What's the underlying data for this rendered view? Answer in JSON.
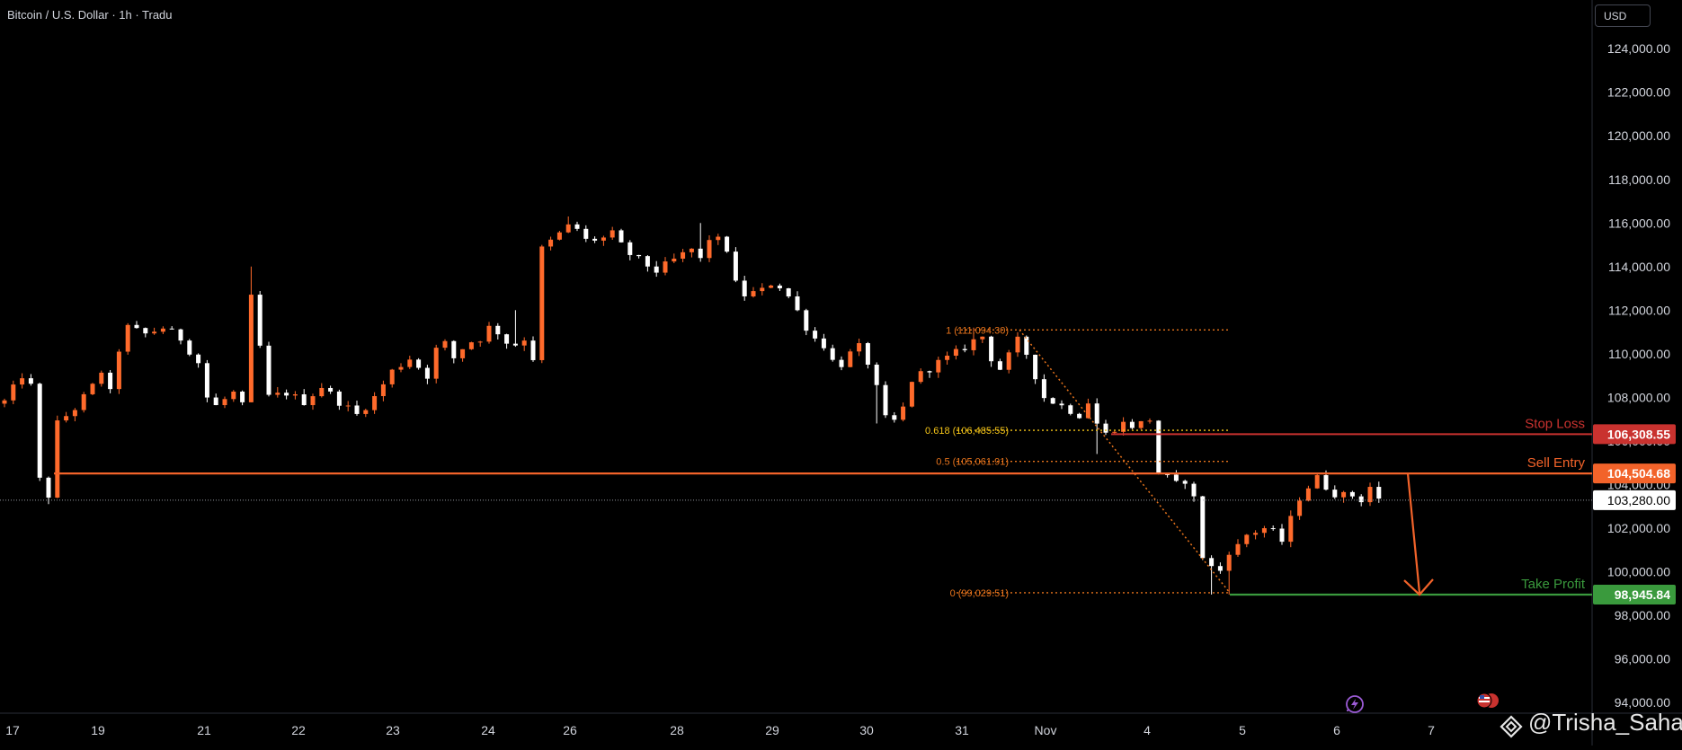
{
  "header": {
    "symbol_title": "Bitcoin / U.S. Dollar · 1h · Tradu",
    "currency_button": "USD"
  },
  "watermark": "@Trisha_Saha",
  "icons": {
    "watermark": "watermark-logo-icon",
    "lightning": "lightning-icon",
    "flag": "us-flag-icon"
  },
  "colors": {
    "up": "#ff6a2b",
    "down": "#ffffff",
    "entry": "#f2632a",
    "stop": "#c9322f",
    "target": "#3a9a3d",
    "fib": "#e8741c",
    "fib_618": "#f5c518"
  },
  "chart_data": {
    "type": "candlestick",
    "title": "Bitcoin / U.S. Dollar · 1h · Tradu",
    "ylim": [
      94000,
      125200
    ],
    "y_ticks": [
      94000,
      96000,
      98000,
      100000,
      102000,
      104000,
      106000,
      108000,
      110000,
      112000,
      114000,
      116000,
      118000,
      120000,
      122000,
      124000
    ],
    "y_tick_labels": [
      "94,000.00",
      "96,000.00",
      "98,000.00",
      "100,000.00",
      "102,000.00",
      "104,000.00",
      "106,000.00",
      "108,000.00",
      "110,000.00",
      "112,000.00",
      "114,000.00",
      "116,000.00",
      "118,000.00",
      "120,000.00",
      "122,000.00",
      "124,000.00"
    ],
    "x_tick_labels": [
      "17",
      "19",
      "21",
      "22",
      "23",
      "24",
      "26",
      "28",
      "29",
      "30",
      "31",
      "Nov",
      "4",
      "5",
      "6",
      "7"
    ],
    "price_path": [
      [
        0,
        107800
      ],
      [
        2,
        109000
      ],
      [
        3,
        108500
      ],
      [
        4,
        104200
      ],
      [
        5,
        103500
      ],
      [
        6,
        106800
      ],
      [
        8,
        107500
      ],
      [
        10,
        108500
      ],
      [
        11,
        109200
      ],
      [
        12,
        108200
      ],
      [
        13,
        110200
      ],
      [
        14,
        111200
      ],
      [
        16,
        110900
      ],
      [
        18,
        111200
      ],
      [
        20,
        110700
      ],
      [
        22,
        109600
      ],
      [
        23,
        108000
      ],
      [
        24,
        107600
      ],
      [
        26,
        108200
      ],
      [
        27,
        107600
      ],
      [
        27.7,
        113500
      ],
      [
        28.4,
        111300
      ],
      [
        29.5,
        109500
      ],
      [
        30,
        108000
      ],
      [
        32,
        108200
      ],
      [
        34,
        107800
      ],
      [
        36,
        108500
      ],
      [
        38,
        107800
      ],
      [
        40,
        107200
      ],
      [
        42,
        108000
      ],
      [
        44,
        109200
      ],
      [
        46,
        109800
      ],
      [
        48,
        109000
      ],
      [
        49.5,
        110800
      ],
      [
        51,
        109800
      ],
      [
        52.5,
        110500
      ],
      [
        54,
        110700
      ],
      [
        55,
        111200
      ],
      [
        56,
        111000
      ],
      [
        57.5,
        110300
      ],
      [
        59,
        110700
      ],
      [
        60,
        109800
      ],
      [
        60.5,
        113500
      ],
      [
        61,
        114800
      ],
      [
        63,
        115500
      ],
      [
        64.5,
        116000
      ],
      [
        66,
        115200
      ],
      [
        68,
        115300
      ],
      [
        69,
        115500
      ],
      [
        70.5,
        114700
      ],
      [
        72,
        114300
      ],
      [
        74,
        113800
      ],
      [
        76,
        114300
      ],
      [
        78,
        114800
      ],
      [
        79,
        114300
      ],
      [
        80,
        115300
      ],
      [
        81,
        115200
      ],
      [
        82,
        114800
      ],
      [
        83,
        113200
      ],
      [
        84,
        112700
      ],
      [
        86,
        112900
      ],
      [
        87.5,
        113400
      ],
      [
        88,
        113100
      ],
      [
        89.5,
        112400
      ],
      [
        90.5,
        111500
      ],
      [
        92,
        110700
      ],
      [
        93,
        110400
      ],
      [
        94.5,
        109300
      ],
      [
        96,
        110000
      ],
      [
        97,
        110300
      ],
      [
        98,
        109600
      ],
      [
        99.5,
        107800
      ],
      [
        100,
        107000
      ],
      [
        101,
        106900
      ],
      [
        102,
        107500
      ],
      [
        103,
        108800
      ],
      [
        104.5,
        109200
      ],
      [
        106,
        109600
      ],
      [
        107.5,
        109900
      ],
      [
        109,
        110300
      ],
      [
        110,
        110600
      ],
      [
        111,
        110800
      ],
      [
        112,
        109800
      ],
      [
        113,
        109300
      ],
      [
        114,
        109900
      ],
      [
        115,
        110600
      ],
      [
        116,
        110000
      ],
      [
        117,
        109000
      ],
      [
        118,
        108000
      ],
      [
        120,
        107600
      ],
      [
        122,
        107200
      ],
      [
        123,
        107800
      ],
      [
        124,
        106800
      ],
      [
        125,
        106300
      ],
      [
        126,
        106600
      ],
      [
        127,
        106800
      ],
      [
        128,
        106700
      ],
      [
        129,
        106800
      ],
      [
        130,
        107000
      ],
      [
        130.5,
        104600
      ],
      [
        132,
        104300
      ],
      [
        133,
        104000
      ],
      [
        134,
        104200
      ],
      [
        134.5,
        104500
      ],
      [
        135.5,
        102200
      ],
      [
        136,
        100700
      ],
      [
        137,
        100200
      ],
      [
        137.5,
        99100
      ],
      [
        138.5,
        101000
      ],
      [
        139.5,
        100900
      ],
      [
        141,
        101700
      ],
      [
        143,
        102000
      ],
      [
        144,
        101800
      ],
      [
        145,
        101400
      ],
      [
        146,
        102400
      ],
      [
        147,
        103400
      ],
      [
        148,
        103900
      ],
      [
        149,
        104300
      ],
      [
        150,
        103900
      ],
      [
        151,
        103600
      ],
      [
        152,
        103500
      ],
      [
        153,
        103500
      ],
      [
        154,
        103300
      ],
      [
        155,
        103900
      ],
      [
        156,
        103280
      ]
    ],
    "levels": [
      {
        "name": "Stop Loss",
        "value": 106308.55,
        "label": "106,308.55"
      },
      {
        "name": "Sell Entry",
        "value": 104504.68,
        "label": "104,504.68"
      },
      {
        "name": "Take Profit",
        "value": 98945.84,
        "label": "98,945.84"
      }
    ],
    "current_price": {
      "value": 103280,
      "label": "103,280.00"
    },
    "fibonacci": [
      {
        "ratio": "1",
        "value": 111094.3,
        "label": "1 (111,094.30)"
      },
      {
        "ratio": "0.618",
        "value": 106485.55,
        "label": "0.618 (106,485.55)"
      },
      {
        "ratio": "0.5",
        "value": 105061.91,
        "label": "0.5 (105,061.91)"
      },
      {
        "ratio": "0",
        "value": 99029.51,
        "label": "0 (99,029.51)"
      }
    ]
  }
}
